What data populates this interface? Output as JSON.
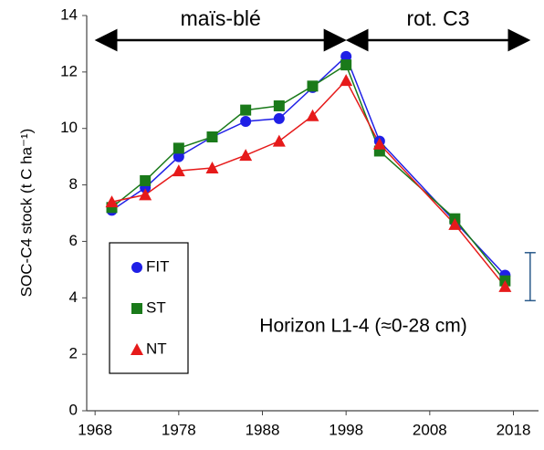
{
  "chart_data": {
    "type": "line",
    "ylabel": "SOC-C4 stock (t C ha⁻¹)",
    "xlim": [
      1967,
      2021
    ],
    "xticks": [
      1968,
      1978,
      1988,
      1998,
      2008,
      2018
    ],
    "ylim": [
      0,
      14
    ],
    "yticks": [
      0,
      2,
      4,
      6,
      8,
      10,
      12,
      14
    ],
    "x": [
      1970,
      1974,
      1978,
      1982,
      1986,
      1990,
      1994,
      1998,
      2002,
      2011,
      2017
    ],
    "series": [
      {
        "name": "FIT",
        "color": "#1f1fe6",
        "marker": "circle",
        "values": [
          7.1,
          7.9,
          9.0,
          9.7,
          10.25,
          10.35,
          11.45,
          12.55,
          9.55,
          6.7,
          4.8
        ]
      },
      {
        "name": "ST",
        "color": "#1a7a1a",
        "marker": "square",
        "values": [
          7.2,
          8.15,
          9.3,
          9.7,
          10.65,
          10.8,
          11.5,
          12.25,
          9.2,
          6.8,
          4.6
        ]
      },
      {
        "name": "NT",
        "color": "#e61a1a",
        "marker": "triangle",
        "values": [
          7.4,
          7.65,
          8.5,
          8.6,
          9.05,
          9.55,
          10.45,
          11.7,
          9.45,
          6.6,
          4.4
        ]
      }
    ],
    "periods": [
      {
        "label": "maïs-blé",
        "start": 1968,
        "end": 1998
      },
      {
        "label": "rot. C3",
        "start": 1998,
        "end": 2020
      }
    ],
    "error_bar": {
      "x": 2020,
      "low": 3.9,
      "high": 5.6,
      "color": "#2a5a8a"
    },
    "annotation": "Horizon L1-4 (≈0-28 cm)"
  }
}
